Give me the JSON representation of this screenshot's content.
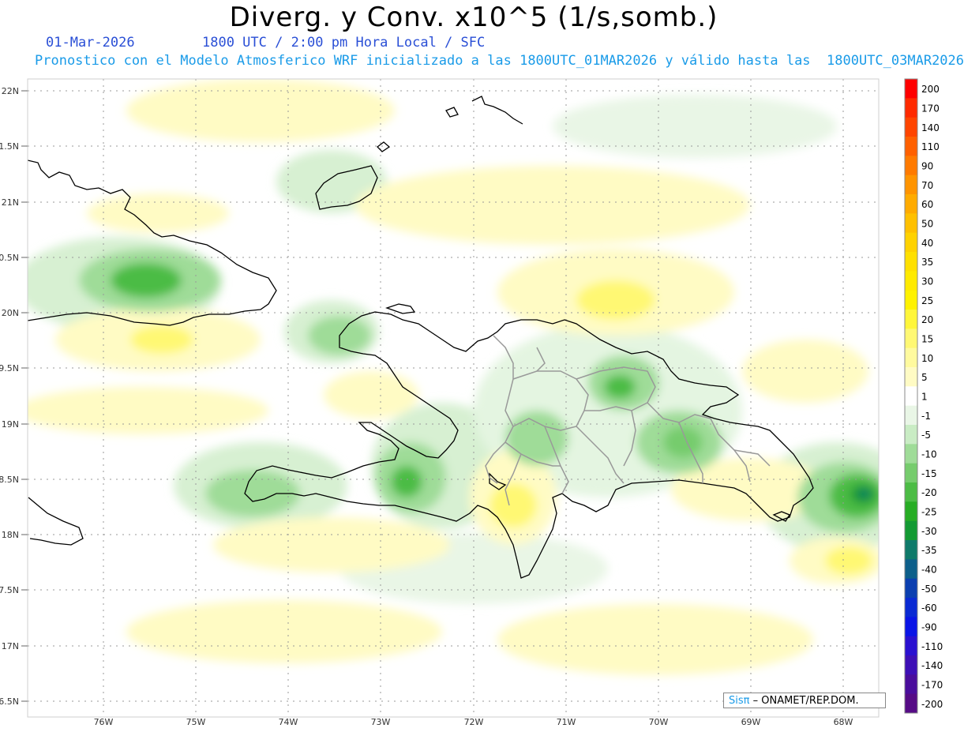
{
  "header": {
    "title": "Diverg. y Conv. x10^5 (1/s,somb.)",
    "date": "01-Mar-2026",
    "time_info": "1800 UTC / 2:00 pm Hora Local / SFC",
    "forecast_info": "Pronostico con el Modelo Atmosferico WRF inicializado a las 1800UTC_01MAR2026 y válido hasta las  1800UTC_03MAR2026"
  },
  "axes": {
    "lat_labels": [
      "22N",
      "1.5N",
      "21N",
      "0.5N",
      "20N",
      "9.5N",
      "19N",
      "8.5N",
      "18N",
      "7.5N",
      "17N",
      "6.5N"
    ],
    "lon_labels": [
      "76W",
      "75W",
      "74W",
      "73W",
      "72W",
      "71W",
      "70W",
      "69W",
      "68W"
    ]
  },
  "colorbar": {
    "labels": [
      "200",
      "170",
      "140",
      "110",
      "90",
      "70",
      "60",
      "50",
      "40",
      "35",
      "30",
      "25",
      "20",
      "15",
      "10",
      "5",
      "1",
      "-1",
      "-5",
      "-10",
      "-15",
      "-20",
      "-25",
      "-30",
      "-35",
      "-40",
      "-50",
      "-60",
      "-90",
      "-110",
      "-140",
      "-170",
      "-200"
    ],
    "colors": [
      "#ff0000",
      "#ff2a00",
      "#ff4500",
      "#ff6000",
      "#ff7a00",
      "#ff9400",
      "#ffab00",
      "#ffc000",
      "#ffd200",
      "#ffe000",
      "#ffea00",
      "#fff200",
      "#fff63a",
      "#fff873",
      "#fffa9e",
      "#fffbc4",
      "#ffffff",
      "#e9f6e6",
      "#c9ecc4",
      "#9fdc98",
      "#76cc6d",
      "#4cbc45",
      "#27ad24",
      "#139a33",
      "#0f7a6a",
      "#0d5f8a",
      "#0b3fb0",
      "#0a2ad3",
      "#0a14e6",
      "#2a10d0",
      "#3d0fb6",
      "#4a0d9c",
      "#560b86"
    ]
  },
  "credit": {
    "brand": "Sisπ",
    "text": "– ONAMET/REP.DOM."
  }
}
